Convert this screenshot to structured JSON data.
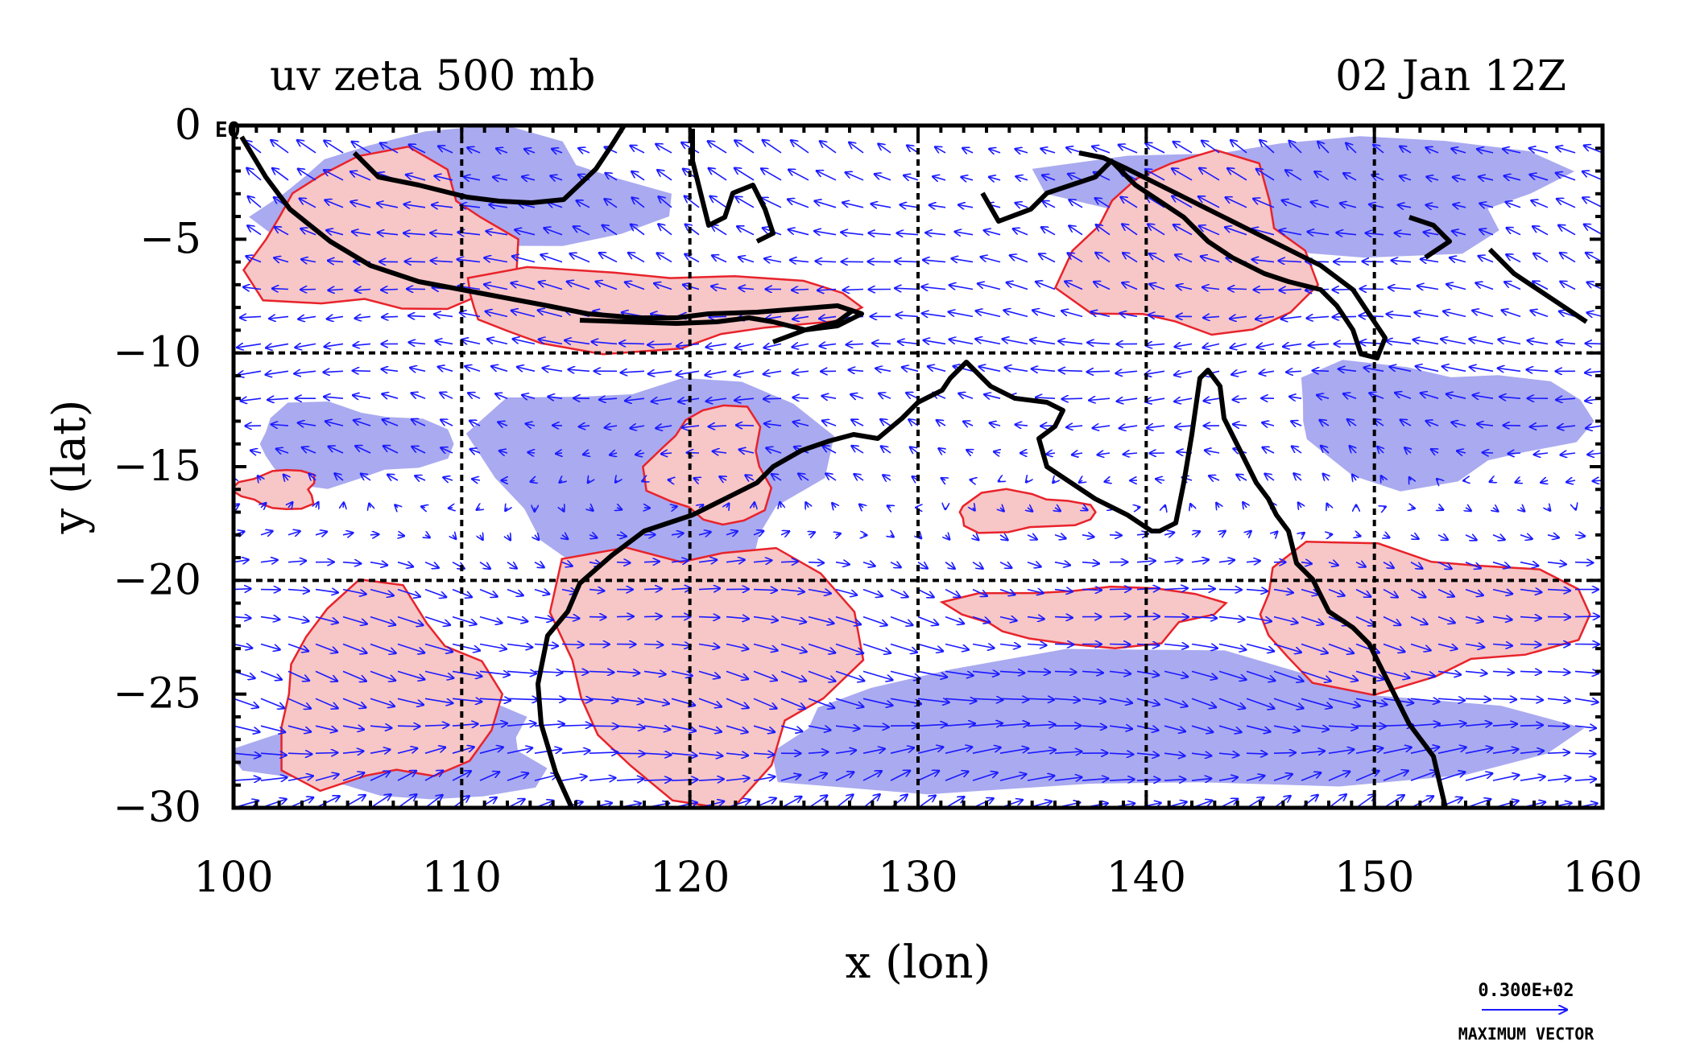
{
  "figure": {
    "title_left": "uv zeta 500 mb",
    "title_right": "02 Jan 12Z",
    "corner_label": "EQ",
    "xlabel": "x (lon)",
    "ylabel": "y (lat)"
  },
  "axes": {
    "xlim": [
      100,
      160
    ],
    "ylim": [
      -30,
      0
    ],
    "xticks": [
      100,
      110,
      120,
      130,
      140,
      150,
      160
    ],
    "yticks": [
      0,
      -5,
      -10,
      -15,
      -20,
      -25,
      -30
    ],
    "xtick_labels": [
      "100",
      "110",
      "120",
      "130",
      "140",
      "150",
      "160"
    ],
    "ytick_labels": [
      "0",
      "−5",
      "−10",
      "−15",
      "−20",
      "−25",
      "−30"
    ],
    "grid_lon": [
      110,
      120,
      130,
      140,
      150
    ],
    "grid_lat": [
      -10,
      -20
    ]
  },
  "legend": {
    "max_vector_value": "0.300E+02",
    "max_vector_label": "MAXIMUM VECTOR"
  },
  "colors": {
    "positive_fill": "#f7c6c6",
    "positive_contour": "#e8232b",
    "negative_fill": "#aaaaf0",
    "vectors": "#1a1aff",
    "coastline": "#000000",
    "grid": "#000000"
  },
  "chart_data": {
    "type": "vector-contour-map",
    "fields": [
      "u,v wind vectors",
      "zeta (relative vorticity)"
    ],
    "level": "500 mb",
    "time": "02 Jan 12Z",
    "vorticity_positive_regions": [
      {
        "lon": [
          100,
          113
        ],
        "lat": [
          -9,
          -1
        ]
      },
      {
        "lon": [
          108,
          128
        ],
        "lat": [
          -10,
          -6
        ]
      },
      {
        "lon": [
          100,
          104
        ],
        "lat": [
          -17,
          -15
        ]
      },
      {
        "lon": [
          101,
          112
        ],
        "lat": [
          -30,
          -20
        ]
      },
      {
        "lon": [
          113,
          128
        ],
        "lat": [
          -30,
          -17
        ]
      },
      {
        "lon": [
          118,
          124
        ],
        "lat": [
          -18,
          -12
        ]
      },
      {
        "lon": [
          131,
          138
        ],
        "lat": [
          -18,
          -16
        ]
      },
      {
        "lon": [
          131,
          144
        ],
        "lat": [
          -23,
          -20
        ]
      },
      {
        "lon": [
          136,
          148
        ],
        "lat": [
          -10,
          -1
        ]
      },
      {
        "lon": [
          143,
          160
        ],
        "lat": [
          -25,
          -18
        ]
      }
    ],
    "vorticity_negative_regions": [
      {
        "lon": [
          100,
          120
        ],
        "lat": [
          -6,
          0
        ]
      },
      {
        "lon": [
          100,
          110
        ],
        "lat": [
          -16,
          -12
        ]
      },
      {
        "lon": [
          110,
          127
        ],
        "lat": [
          -21,
          -10
        ]
      },
      {
        "lon": [
          100,
          115
        ],
        "lat": [
          -30,
          -25
        ]
      },
      {
        "lon": [
          120,
          160
        ],
        "lat": [
          -30,
          -23
        ]
      },
      {
        "lon": [
          145,
          160
        ],
        "lat": [
          -16,
          -10
        ]
      },
      {
        "lon": [
          135,
          160
        ],
        "lat": [
          -6,
          0
        ]
      }
    ],
    "wind_pattern": [
      {
        "lat": 0,
        "u": -9,
        "v": 6
      },
      {
        "lat": -5,
        "u": -12,
        "v": 4
      },
      {
        "lat": -10,
        "u": -14,
        "v": 0
      },
      {
        "lat": -15,
        "u": -6,
        "v": 2
      },
      {
        "lat": -20,
        "u": 12,
        "v": -2
      },
      {
        "lat": -25,
        "u": 18,
        "v": -4
      },
      {
        "lat": -30,
        "u": 14,
        "v": 6
      }
    ],
    "max_vector": 30
  }
}
